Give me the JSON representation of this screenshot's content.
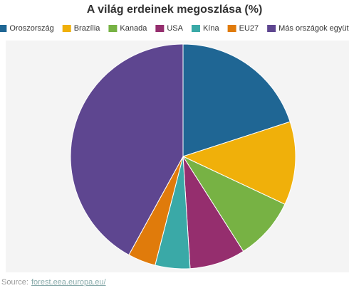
{
  "chart_data": {
    "type": "pie",
    "title": "A világ erdeinek megoszlása (%)",
    "categories": [
      "Oroszország",
      "Brazília",
      "Kanada",
      "USA",
      "Kína",
      "EU27",
      "Más országok együtt"
    ],
    "values": [
      20,
      12,
      9,
      8,
      5,
      4,
      42
    ],
    "colors": [
      "#1f6694",
      "#f0b00a",
      "#77b244",
      "#952e6e",
      "#3aa9a7",
      "#e07b0b",
      "#5e4690"
    ],
    "legend": "top",
    "source_label": "Source:",
    "source_link": "forest.eea.europa.eu/"
  }
}
